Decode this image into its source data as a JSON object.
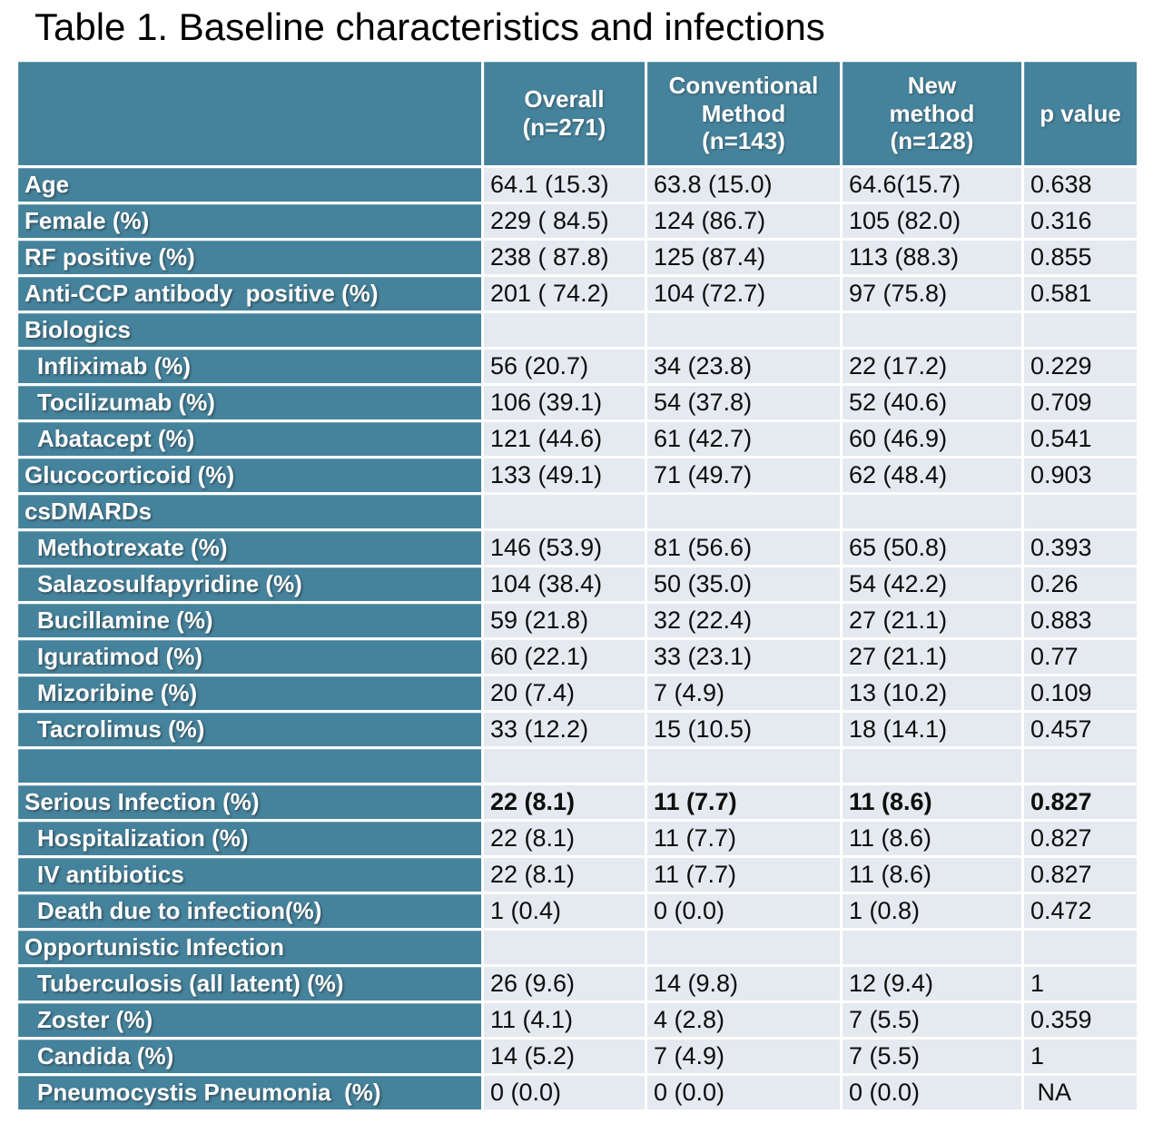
{
  "title": "Table 1. Baseline characteristics and infections",
  "colors": {
    "header_teal": "#45829b",
    "cell_light": "#e4eaef",
    "title_text": "#000000",
    "label_text": "#ffffff",
    "value_text": "#0d0d0d"
  },
  "table": {
    "columns": [
      "Overall\n(n=271)",
      "Conventional\nMethod\n(n=143)",
      "New\nmethod\n(n=128)",
      "p value"
    ],
    "rows": [
      {
        "label": "Age",
        "indent": false,
        "bold": false,
        "values": [
          "64.1 (15.3)",
          "63.8 (15.0)",
          "64.6(15.7)",
          "0.638"
        ]
      },
      {
        "label": "Female (%)",
        "indent": false,
        "bold": false,
        "values": [
          "229 ( 84.5)",
          "124 (86.7)",
          "105 (82.0)",
          "0.316"
        ]
      },
      {
        "label": "RF positive (%)",
        "indent": false,
        "bold": false,
        "values": [
          "238 ( 87.8)",
          "125 (87.4)",
          "113 (88.3)",
          "0.855"
        ]
      },
      {
        "label": "Anti-CCP antibody  positive (%)",
        "indent": false,
        "bold": false,
        "values": [
          "201 ( 74.2)",
          "104 (72.7)",
          "97 (75.8)",
          "0.581"
        ]
      },
      {
        "label": "Biologics",
        "indent": false,
        "bold": false,
        "values": [
          "",
          "",
          "",
          ""
        ]
      },
      {
        "label": "Infliximab (%)",
        "indent": true,
        "bold": false,
        "values": [
          "56 (20.7)",
          "34 (23.8)",
          "22 (17.2)",
          "0.229"
        ]
      },
      {
        "label": "Tocilizumab (%)",
        "indent": true,
        "bold": false,
        "values": [
          "106 (39.1)",
          "54 (37.8)",
          "52 (40.6)",
          "0.709"
        ]
      },
      {
        "label": "Abatacept (%)",
        "indent": true,
        "bold": false,
        "values": [
          "121 (44.6)",
          "61 (42.7)",
          "60 (46.9)",
          "0.541"
        ]
      },
      {
        "label": "Glucocorticoid (%)",
        "indent": false,
        "bold": false,
        "values": [
          "133 (49.1)",
          "71 (49.7)",
          "62 (48.4)",
          "0.903"
        ]
      },
      {
        "label": "csDMARDs",
        "indent": false,
        "bold": false,
        "values": [
          "",
          "",
          "",
          ""
        ]
      },
      {
        "label": "Methotrexate (%)",
        "indent": true,
        "bold": false,
        "values": [
          "146 (53.9)",
          "81 (56.6)",
          "65 (50.8)",
          "0.393"
        ]
      },
      {
        "label": "Salazosulfapyridine (%)",
        "indent": true,
        "bold": false,
        "values": [
          "104 (38.4)",
          "50 (35.0)",
          "54 (42.2)",
          "0.26"
        ]
      },
      {
        "label": "Bucillamine (%)",
        "indent": true,
        "bold": false,
        "values": [
          "59 (21.8)",
          "32 (22.4)",
          "27 (21.1)",
          "0.883"
        ]
      },
      {
        "label": "Iguratimod (%)",
        "indent": true,
        "bold": false,
        "values": [
          "60 (22.1)",
          "33 (23.1)",
          "27 (21.1)",
          "0.77"
        ]
      },
      {
        "label": "Mizoribine (%)",
        "indent": true,
        "bold": false,
        "values": [
          "20 (7.4)",
          "7 (4.9)",
          "13 (10.2)",
          "0.109"
        ]
      },
      {
        "label": "Tacrolimus (%)",
        "indent": true,
        "bold": false,
        "values": [
          "33 (12.2)",
          "15 (10.5)",
          "18 (14.1)",
          "0.457"
        ]
      },
      {
        "label": "",
        "indent": false,
        "bold": false,
        "values": [
          "",
          "",
          "",
          ""
        ]
      },
      {
        "label": "Serious Infection (%)",
        "indent": false,
        "bold": true,
        "values": [
          "22 (8.1)",
          "11 (7.7)",
          "11 (8.6)",
          "0.827"
        ]
      },
      {
        "label": "Hospitalization (%)",
        "indent": true,
        "bold": false,
        "values": [
          "22 (8.1)",
          "11 (7.7)",
          "11 (8.6)",
          "0.827"
        ]
      },
      {
        "label": "IV antibiotics",
        "indent": true,
        "bold": false,
        "values": [
          "22 (8.1)",
          "11 (7.7)",
          "11 (8.6)",
          "0.827"
        ]
      },
      {
        "label": "Death due to infection(%)",
        "indent": true,
        "bold": false,
        "values": [
          "1 (0.4)",
          "0 (0.0)",
          "1 (0.8)",
          "0.472"
        ]
      },
      {
        "label": "Opportunistic Infection",
        "indent": false,
        "bold": false,
        "values": [
          "",
          "",
          "",
          ""
        ]
      },
      {
        "label": "Tuberculosis (all latent) (%)",
        "indent": true,
        "bold": false,
        "values": [
          "26 (9.6)",
          "14 (9.8)",
          "12 (9.4)",
          "1"
        ]
      },
      {
        "label": "Zoster (%)",
        "indent": true,
        "bold": false,
        "values": [
          "11 (4.1)",
          "4 (2.8)",
          "7 (5.5)",
          "0.359"
        ]
      },
      {
        "label": "Candida (%)",
        "indent": true,
        "bold": false,
        "values": [
          "14 (5.2)",
          "7 (4.9)",
          "7 (5.5)",
          "1"
        ]
      },
      {
        "label": "Pneumocystis Pneumonia  (%)",
        "indent": true,
        "bold": false,
        "values": [
          "0 (0.0)",
          "0 (0.0)",
          "0 (0.0)",
          " NA"
        ]
      }
    ]
  }
}
